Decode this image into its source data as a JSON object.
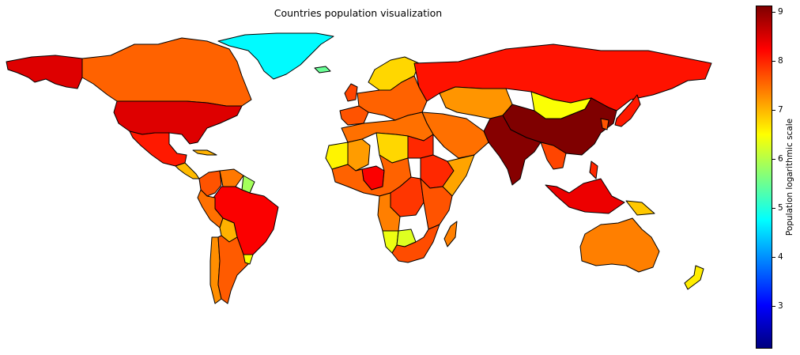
{
  "title": "Countries population visualization",
  "colorbar": {
    "label": "Population logarithmic scale",
    "min": 2.15,
    "max": 9.15,
    "ticks": [
      3,
      4,
      5,
      6,
      7,
      8,
      9
    ],
    "colormap": [
      "#00007f",
      "#0000ff",
      "#007fff",
      "#00ffff",
      "#7fff7f",
      "#ffff00",
      "#ff7f00",
      "#ff0000",
      "#7f0000"
    ]
  },
  "regions": [
    {
      "name": "canada",
      "value": 7.6
    },
    {
      "name": "usa",
      "value": 8.5
    },
    {
      "name": "alaska",
      "value": 8.5
    },
    {
      "name": "greenland",
      "value": 4.75
    },
    {
      "name": "mexico",
      "value": 8.1
    },
    {
      "name": "central-america",
      "value": 7.0
    },
    {
      "name": "cuba",
      "value": 7.05
    },
    {
      "name": "colombia",
      "value": 7.7
    },
    {
      "name": "venezuela",
      "value": 7.45
    },
    {
      "name": "guyana",
      "value": 5.9
    },
    {
      "name": "brazil",
      "value": 8.3
    },
    {
      "name": "peru",
      "value": 7.5
    },
    {
      "name": "bolivia",
      "value": 7.05
    },
    {
      "name": "argentina",
      "value": 7.65
    },
    {
      "name": "chile",
      "value": 7.3
    },
    {
      "name": "uruguay",
      "value": 6.5
    },
    {
      "name": "iceland",
      "value": 5.5
    },
    {
      "name": "scandinavia",
      "value": 6.8
    },
    {
      "name": "uk",
      "value": 7.8
    },
    {
      "name": "europe",
      "value": 7.6
    },
    {
      "name": "spain",
      "value": 7.7
    },
    {
      "name": "russia",
      "value": 8.15
    },
    {
      "name": "kazakhstan",
      "value": 7.25
    },
    {
      "name": "mongolia",
      "value": 6.5
    },
    {
      "name": "china",
      "value": 9.15
    },
    {
      "name": "india",
      "value": 9.1
    },
    {
      "name": "middle-east",
      "value": 7.5
    },
    {
      "name": "north-africa",
      "value": 7.5
    },
    {
      "name": "libya",
      "value": 6.8
    },
    {
      "name": "mali",
      "value": 7.2
    },
    {
      "name": "mauritania",
      "value": 6.6
    },
    {
      "name": "egypt",
      "value": 8.0
    },
    {
      "name": "nigeria",
      "value": 8.3
    },
    {
      "name": "central-africa",
      "value": 7.6
    },
    {
      "name": "drc",
      "value": 7.9
    },
    {
      "name": "ethiopia",
      "value": 8.0
    },
    {
      "name": "somalia",
      "value": 7.15
    },
    {
      "name": "east-africa",
      "value": 7.7
    },
    {
      "name": "angola",
      "value": 7.4
    },
    {
      "name": "namibia",
      "value": 6.4
    },
    {
      "name": "botswana",
      "value": 6.3
    },
    {
      "name": "south-africa",
      "value": 7.75
    },
    {
      "name": "madagascar",
      "value": 7.4
    },
    {
      "name": "southeast-asia",
      "value": 7.8
    },
    {
      "name": "indonesia",
      "value": 8.4
    },
    {
      "name": "philippines",
      "value": 8.0
    },
    {
      "name": "japan",
      "value": 8.1
    },
    {
      "name": "korea",
      "value": 7.7
    },
    {
      "name": "papua-new-guinea",
      "value": 6.9
    },
    {
      "name": "australia",
      "value": 7.4
    },
    {
      "name": "new-zealand",
      "value": 6.65
    }
  ]
}
